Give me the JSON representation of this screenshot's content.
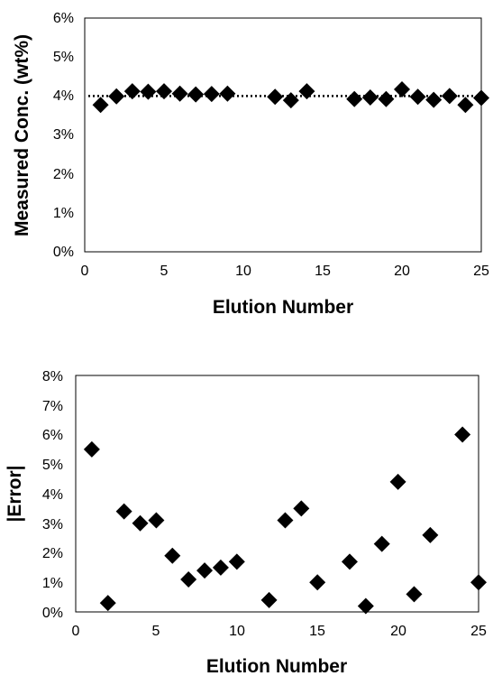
{
  "chart_data": [
    {
      "type": "scatter",
      "xlabel": "Elution Number",
      "ylabel": "Measured Conc. (wt%)",
      "xlim": [
        0,
        25
      ],
      "ylim": [
        0,
        6
      ],
      "x_ticks": [
        "0",
        "5",
        "10",
        "15",
        "20",
        "25"
      ],
      "y_ticks": [
        "0%",
        "1%",
        "2%",
        "3%",
        "4%",
        "5%",
        "6%"
      ],
      "grid": false,
      "legend": "none",
      "reference_line": {
        "y": 4.0,
        "style": "dotted"
      },
      "series": [
        {
          "marker": "diamond",
          "color": "#000000",
          "x": [
            1,
            2,
            3,
            4,
            5,
            6,
            7,
            8,
            9,
            12,
            13,
            14,
            17,
            18,
            19,
            20,
            21,
            22,
            23,
            24,
            25
          ],
          "y": [
            3.77,
            3.99,
            4.12,
            4.11,
            4.12,
            4.06,
            4.04,
            4.05,
            4.06,
            3.98,
            3.89,
            4.12,
            3.92,
            3.96,
            3.92,
            4.17,
            3.98,
            3.9,
            4.0,
            3.77,
            3.95
          ]
        }
      ]
    },
    {
      "type": "scatter",
      "xlabel": "Elution Number",
      "ylabel": "|Error|",
      "xlim": [
        0,
        25
      ],
      "ylim": [
        0,
        8
      ],
      "x_ticks": [
        "0",
        "5",
        "10",
        "15",
        "20",
        "25"
      ],
      "y_ticks": [
        "0%",
        "1%",
        "2%",
        "3%",
        "4%",
        "5%",
        "6%",
        "7%",
        "8%"
      ],
      "grid": false,
      "legend": "none",
      "series": [
        {
          "marker": "diamond",
          "color": "#000000",
          "x": [
            1,
            2,
            3,
            4,
            5,
            6,
            7,
            8,
            9,
            10,
            12,
            13,
            14,
            15,
            17,
            18,
            19,
            20,
            21,
            22,
            24,
            25
          ],
          "y": [
            5.5,
            0.3,
            3.4,
            3.0,
            3.1,
            1.9,
            1.1,
            1.4,
            1.5,
            1.7,
            0.4,
            3.1,
            3.5,
            1.0,
            1.7,
            0.2,
            2.3,
            4.4,
            0.6,
            2.6,
            6.0,
            1.0
          ]
        }
      ]
    }
  ]
}
